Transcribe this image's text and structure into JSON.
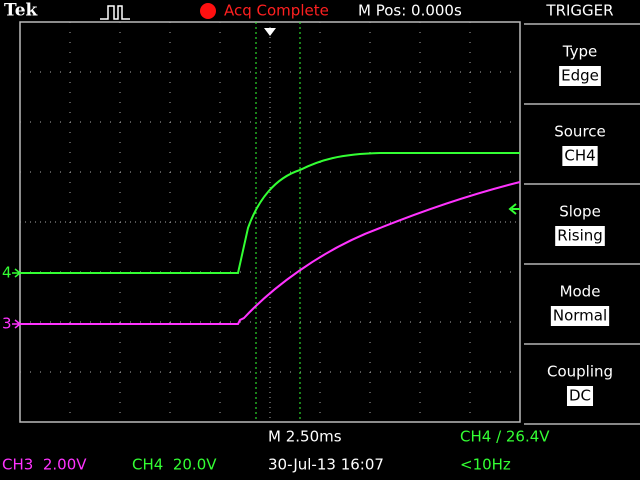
{
  "header": {
    "brand": "Tek",
    "acq_status": "Acq Complete",
    "m_pos": "M Pos: 0.000s"
  },
  "menu": {
    "title": "TRIGGER",
    "items": [
      {
        "label": "Type",
        "value": "Edge"
      },
      {
        "label": "Source",
        "value": "CH4"
      },
      {
        "label": "Slope",
        "value": "Rising"
      },
      {
        "label": "Mode",
        "value": "Normal"
      },
      {
        "label": "Coupling",
        "value": "DC"
      }
    ]
  },
  "markers": {
    "ch4": "4",
    "ch3": "3"
  },
  "footer": {
    "timebase": "M 2.50ms",
    "trigger": "CH4 / 26.4V",
    "ch3": "CH3  2.00V",
    "ch4": "CH4  20.0V",
    "datetime": "30-Jul-13 16:07",
    "freq": "<10Hz"
  }
}
